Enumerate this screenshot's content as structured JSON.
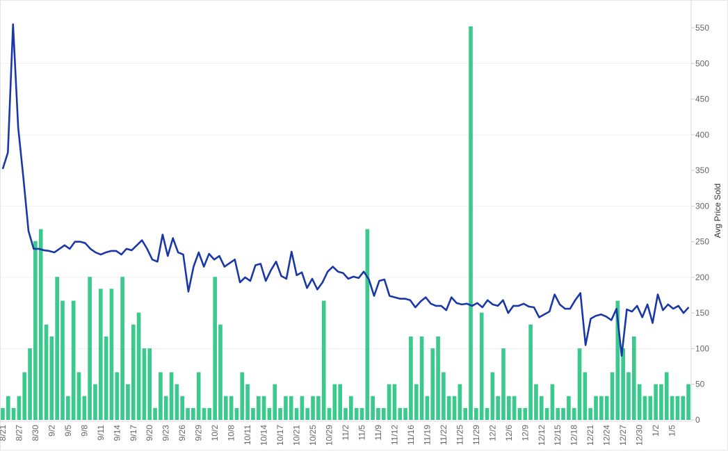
{
  "chart_data": {
    "type": "bar+line",
    "ylabel_right": "Avg Price Sold",
    "y_right_ticks": [
      0,
      50,
      100,
      150,
      200,
      250,
      300,
      350,
      400,
      450,
      500,
      550
    ],
    "y_right_range": [
      0,
      583
    ],
    "x_tick_labels": [
      "8/21",
      "8/27",
      "8/30",
      "9/2",
      "9/5",
      "9/8",
      "9/11",
      "9/14",
      "9/17",
      "9/20",
      "9/23",
      "9/26",
      "9/29",
      "10/2",
      "10/8",
      "10/11",
      "10/14",
      "10/17",
      "10/21",
      "10/25",
      "10/29",
      "11/2",
      "11/5",
      "11/9",
      "11/12",
      "11/16",
      "11/19",
      "11/22",
      "11/25",
      "11/29",
      "12/2",
      "12/6",
      "12/9",
      "12/12",
      "12/15",
      "12/18",
      "12/21",
      "12/24",
      "12/27",
      "12/30",
      "1/2",
      "1/5"
    ],
    "x_tick_positions": [
      1,
      4,
      7,
      10,
      13,
      16,
      19,
      22,
      25,
      28,
      31,
      34,
      37,
      40,
      43,
      46,
      49,
      52,
      55,
      58,
      61,
      64,
      67,
      70,
      73,
      76,
      79,
      82,
      85,
      88,
      91,
      94,
      97,
      100,
      103,
      106,
      109,
      112,
      115,
      118,
      121,
      124
    ],
    "bar_series": {
      "color": "#3cc98e",
      "relative_values": [
        0.0303,
        0.0606,
        0.0303,
        0.0606,
        0.1212,
        0.1818,
        0.4545,
        0.4848,
        0.2424,
        0.2121,
        0.3636,
        0.303,
        0.0606,
        0.303,
        0.1212,
        0.0606,
        0.3636,
        0.0909,
        0.3333,
        0.2121,
        0.3333,
        0.1212,
        0.3636,
        0.0909,
        0.2424,
        0.2727,
        0.1818,
        0.1818,
        0.0303,
        0.1212,
        0.0606,
        0.1212,
        0.0909,
        0.0606,
        0.0303,
        0.0303,
        0.1212,
        0.0303,
        0.0303,
        0.3636,
        0.2424,
        0.0606,
        0.0606,
        0.0303,
        0.1212,
        0.0909,
        0.0303,
        0.0606,
        0.0606,
        0.0303,
        0.0909,
        0.0303,
        0.0606,
        0.0606,
        0.0303,
        0.0606,
        0.0303,
        0.0606,
        0.0606,
        0.303,
        0.0303,
        0.0909,
        0.0909,
        0.0303,
        0.0606,
        0.0303,
        0.0303,
        0.4848,
        0.0606,
        0.0303,
        0.0303,
        0.0909,
        0.0909,
        0.0303,
        0.0303,
        0.2121,
        0.0909,
        0.2121,
        0.0606,
        0.1818,
        0.2121,
        0.1212,
        0.0606,
        0.0606,
        0.0909,
        0.0303,
        1.0,
        0.0303,
        0.2727,
        0.0303,
        0.1212,
        0.0606,
        0.1818,
        0.0606,
        0.0606,
        0.0303,
        0.0303,
        0.2424,
        0.0909,
        0.0606,
        0.0303,
        0.0909,
        0.0303,
        0.0303,
        0.0606,
        0.0303,
        0.1818,
        0.1212,
        0.0303,
        0.0606,
        0.0606,
        0.0606,
        0.1212,
        0.303,
        0.1818,
        0.1212,
        0.2121,
        0.0909,
        0.0606,
        0.0606,
        0.0909,
        0.0909,
        0.1212,
        0.0606,
        0.0606,
        0.0606,
        0.0909
      ]
    },
    "line_series": {
      "name": "Avg Price Sold",
      "color": "#1a37a8",
      "values": [
        352,
        375,
        555,
        410,
        340,
        265,
        240,
        240,
        238,
        237,
        235,
        240,
        245,
        240,
        250,
        250,
        248,
        240,
        235,
        232,
        235,
        237,
        237,
        232,
        240,
        238,
        245,
        252,
        240,
        225,
        222,
        260,
        230,
        255,
        235,
        232,
        180,
        215,
        235,
        215,
        233,
        225,
        230,
        215,
        220,
        225,
        193,
        200,
        195,
        217,
        219,
        195,
        210,
        222,
        202,
        198,
        236,
        203,
        207,
        185,
        198,
        183,
        193,
        208,
        215,
        208,
        206,
        198,
        201,
        199,
        208,
        197,
        174,
        195,
        197,
        174,
        172,
        170,
        170,
        168,
        158,
        166,
        172,
        163,
        160,
        160,
        154,
        172,
        164,
        162,
        163,
        160,
        164,
        158,
        168,
        162,
        160,
        168,
        150,
        160,
        160,
        163,
        159,
        158,
        144,
        148,
        152,
        176,
        162,
        156,
        156,
        168,
        178,
        105,
        142,
        146,
        148,
        145,
        140,
        156,
        90,
        155,
        152,
        160,
        144,
        162,
        136,
        176,
        154,
        162,
        156,
        160,
        150,
        158
      ]
    }
  }
}
